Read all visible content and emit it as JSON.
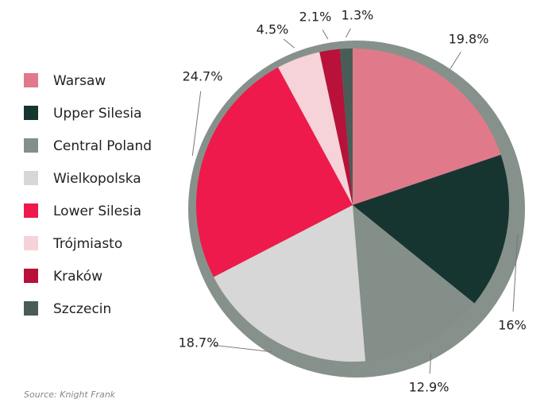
{
  "chart_data": {
    "type": "pie",
    "categories": [
      "Warsaw",
      "Upper Silesia",
      "Central Poland",
      "Wielkopolska",
      "Lower Silesia",
      "Trójmiasto",
      "Kraków",
      "Szczecin"
    ],
    "values": [
      19.8,
      16,
      12.9,
      18.7,
      24.7,
      4.5,
      2.1,
      1.3
    ],
    "value_labels": [
      "19.8%",
      "16%",
      "12.9%",
      "18.7%",
      "24.7%",
      "4.5%",
      "2.1%",
      "1.3%"
    ],
    "colors": [
      "#e07a8a",
      "#173530",
      "#858f8a",
      "#d6d7d6",
      "#ee1a4c",
      "#f5d3d8",
      "#b8113a",
      "#4a5c56"
    ],
    "legend": "left",
    "source": "Source: Knight Frank"
  }
}
